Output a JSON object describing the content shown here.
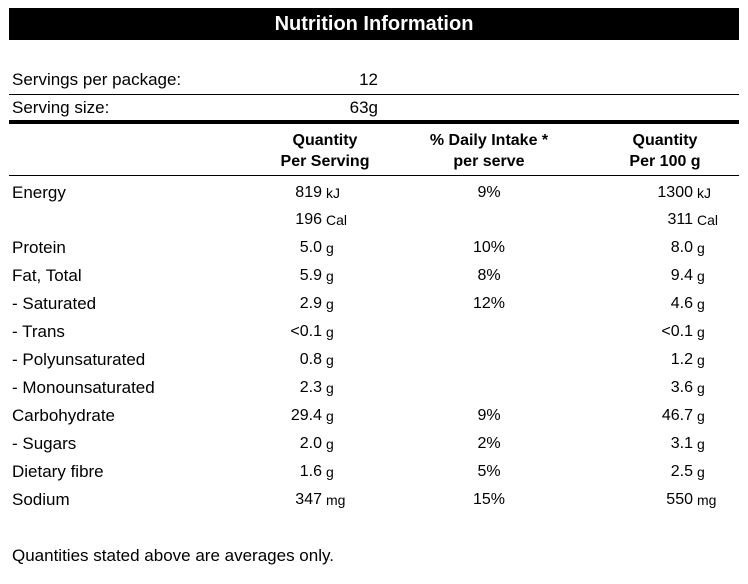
{
  "title": "Nutrition Information",
  "servings": {
    "per_package_label": "Servings per package:",
    "per_package_value": "12",
    "size_label": "Serving size:",
    "size_value": "63g"
  },
  "headers": {
    "col1_line1": "Quantity",
    "col1_line2": "Per Serving",
    "col2_line1": "% Daily Intake *",
    "col2_line2": "per serve",
    "col3_line1": "Quantity",
    "col3_line2": "Per 100 g"
  },
  "rows": [
    {
      "name": "Energy",
      "ps_num": "819",
      "ps_unit": "kJ",
      "di": "9%",
      "p100_num": "1300",
      "p100_unit": "kJ"
    },
    {
      "name": "",
      "ps_num": "196",
      "ps_unit": "Cal",
      "di": "",
      "p100_num": "311",
      "p100_unit": "Cal"
    },
    {
      "name": "Protein",
      "ps_num": "5.0",
      "ps_unit": "g",
      "di": "10%",
      "p100_num": "8.0",
      "p100_unit": "g"
    },
    {
      "name": "Fat, Total",
      "ps_num": "5.9",
      "ps_unit": "g",
      "di": "8%",
      "p100_num": "9.4",
      "p100_unit": "g"
    },
    {
      "name": "- Saturated",
      "ps_num": "2.9",
      "ps_unit": "g",
      "di": "12%",
      "p100_num": "4.6",
      "p100_unit": "g"
    },
    {
      "name": "- Trans",
      "ps_num": "<0.1",
      "ps_unit": "g",
      "di": "",
      "p100_num": "<0.1",
      "p100_unit": "g"
    },
    {
      "name": "- Polyunsaturated",
      "ps_num": "0.8",
      "ps_unit": "g",
      "di": "",
      "p100_num": "1.2",
      "p100_unit": "g"
    },
    {
      "name": "- Monounsaturated",
      "ps_num": "2.3",
      "ps_unit": "g",
      "di": "",
      "p100_num": "3.6",
      "p100_unit": "g"
    },
    {
      "name": "Carbohydrate",
      "ps_num": "29.4",
      "ps_unit": "g",
      "di": "9%",
      "p100_num": "46.7",
      "p100_unit": "g"
    },
    {
      "name": "- Sugars",
      "ps_num": "2.0",
      "ps_unit": "g",
      "di": "2%",
      "p100_num": "3.1",
      "p100_unit": "g"
    },
    {
      "name": "Dietary fibre",
      "ps_num": "1.6",
      "ps_unit": "g",
      "di": "5%",
      "p100_num": "2.5",
      "p100_unit": "g"
    },
    {
      "name": "Sodium",
      "ps_num": "347",
      "ps_unit": "mg",
      "di": "15%",
      "p100_num": "550",
      "p100_unit": "mg"
    }
  ],
  "footer": "Quantities stated above are averages only."
}
